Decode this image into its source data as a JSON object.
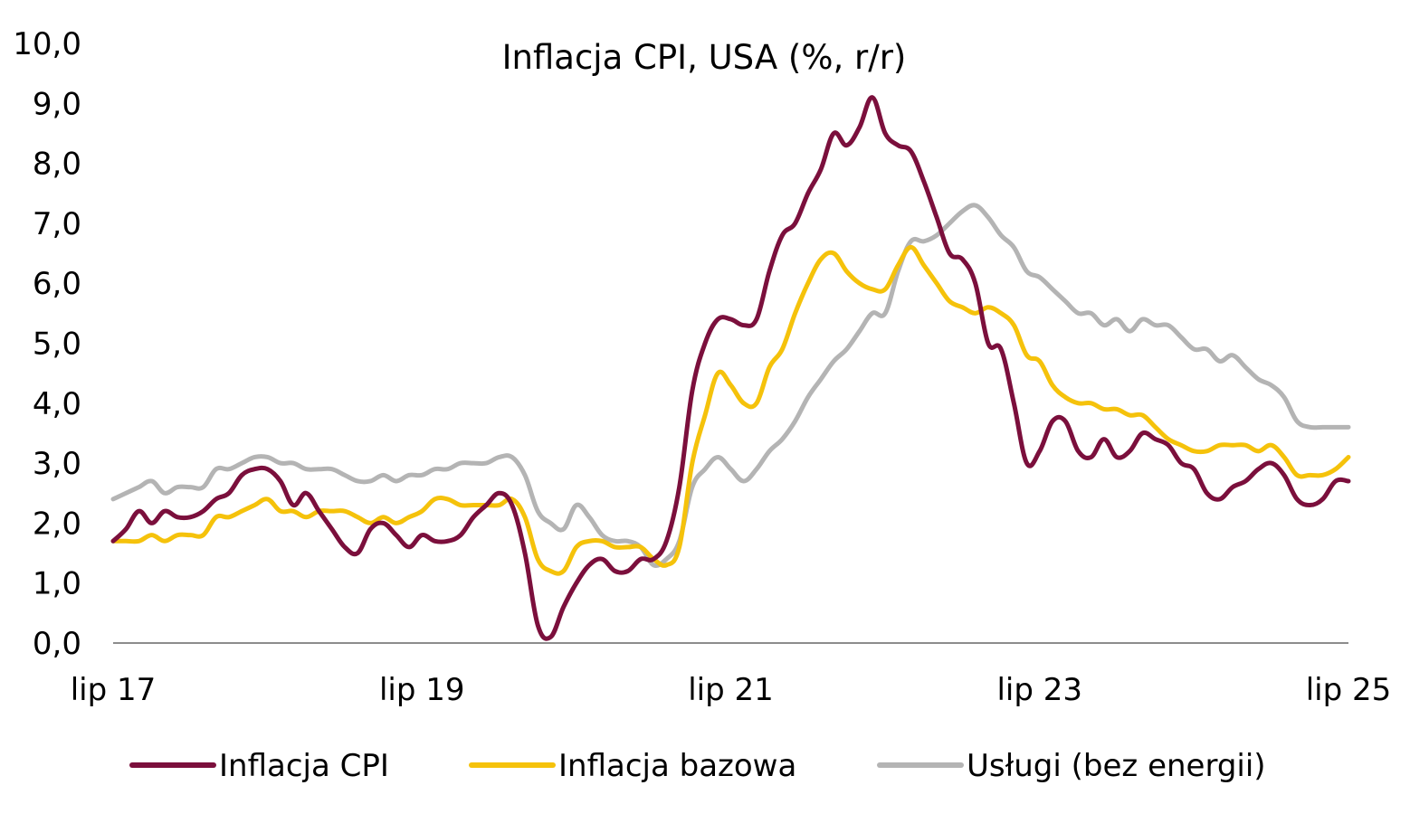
{
  "chart_data": {
    "type": "line",
    "title": "Inflacja CPI, USA (%, r/r)",
    "xlabel": "",
    "ylabel": "",
    "ylim": [
      0,
      10
    ],
    "y_ticks": [
      "0,0",
      "1,0",
      "2,0",
      "3,0",
      "4,0",
      "5,0",
      "6,0",
      "7,0",
      "8,0",
      "9,0",
      "10,0"
    ],
    "x_ticks": [
      "lip 17",
      "lip 19",
      "lip 21",
      "lip 23",
      "lip 25"
    ],
    "x_start": "2017-07",
    "x_end": "2025-07",
    "grid": false,
    "legend_position": "bottom",
    "series": [
      {
        "name": "Inflacja CPI",
        "color": "#7b0f3c",
        "values": [
          1.7,
          1.9,
          2.2,
          2.0,
          2.2,
          2.1,
          2.1,
          2.2,
          2.4,
          2.5,
          2.8,
          2.9,
          2.9,
          2.7,
          2.3,
          2.5,
          2.2,
          1.9,
          1.6,
          1.5,
          1.9,
          2.0,
          1.8,
          1.6,
          1.8,
          1.7,
          1.7,
          1.8,
          2.1,
          2.3,
          2.5,
          2.3,
          1.5,
          0.3,
          0.1,
          0.6,
          1.0,
          1.3,
          1.4,
          1.2,
          1.2,
          1.4,
          1.4,
          1.7,
          2.6,
          4.2,
          5.0,
          5.4,
          5.4,
          5.3,
          5.4,
          6.2,
          6.8,
          7.0,
          7.5,
          7.9,
          8.5,
          8.3,
          8.6,
          9.1,
          8.5,
          8.3,
          8.2,
          7.7,
          7.1,
          6.5,
          6.4,
          6.0,
          5.0,
          4.9,
          4.0,
          3.0,
          3.2,
          3.7,
          3.7,
          3.2,
          3.1,
          3.4,
          3.1,
          3.2,
          3.5,
          3.4,
          3.3,
          3.0,
          2.9,
          2.5,
          2.4,
          2.6,
          2.7,
          2.9,
          3.0,
          2.8,
          2.4,
          2.3,
          2.4,
          2.7,
          2.7
        ]
      },
      {
        "name": "Inflacja bazowa",
        "color": "#f5c20b",
        "values": [
          1.7,
          1.7,
          1.7,
          1.8,
          1.7,
          1.8,
          1.8,
          1.8,
          2.1,
          2.1,
          2.2,
          2.3,
          2.4,
          2.2,
          2.2,
          2.1,
          2.2,
          2.2,
          2.2,
          2.1,
          2.0,
          2.1,
          2.0,
          2.1,
          2.2,
          2.4,
          2.4,
          2.3,
          2.3,
          2.3,
          2.3,
          2.4,
          2.1,
          1.4,
          1.2,
          1.2,
          1.6,
          1.7,
          1.7,
          1.6,
          1.6,
          1.6,
          1.4,
          1.3,
          1.6,
          3.0,
          3.8,
          4.5,
          4.3,
          4.0,
          4.0,
          4.6,
          4.9,
          5.5,
          6.0,
          6.4,
          6.5,
          6.2,
          6.0,
          5.9,
          5.9,
          6.3,
          6.6,
          6.3,
          6.0,
          5.7,
          5.6,
          5.5,
          5.6,
          5.5,
          5.3,
          4.8,
          4.7,
          4.3,
          4.1,
          4.0,
          4.0,
          3.9,
          3.9,
          3.8,
          3.8,
          3.6,
          3.4,
          3.3,
          3.2,
          3.2,
          3.3,
          3.3,
          3.3,
          3.2,
          3.3,
          3.1,
          2.8,
          2.8,
          2.8,
          2.9,
          3.1
        ]
      },
      {
        "name": "Usługi (bez energii)",
        "color": "#b4b4b4",
        "values": [
          2.4,
          2.5,
          2.6,
          2.7,
          2.5,
          2.6,
          2.6,
          2.6,
          2.9,
          2.9,
          3.0,
          3.1,
          3.1,
          3.0,
          3.0,
          2.9,
          2.9,
          2.9,
          2.8,
          2.7,
          2.7,
          2.8,
          2.7,
          2.8,
          2.8,
          2.9,
          2.9,
          3.0,
          3.0,
          3.0,
          3.1,
          3.1,
          2.8,
          2.2,
          2.0,
          1.9,
          2.3,
          2.1,
          1.8,
          1.7,
          1.7,
          1.6,
          1.3,
          1.4,
          1.7,
          2.6,
          2.9,
          3.1,
          2.9,
          2.7,
          2.9,
          3.2,
          3.4,
          3.7,
          4.1,
          4.4,
          4.7,
          4.9,
          5.2,
          5.5,
          5.5,
          6.2,
          6.7,
          6.7,
          6.8,
          7.0,
          7.2,
          7.3,
          7.1,
          6.8,
          6.6,
          6.2,
          6.1,
          5.9,
          5.7,
          5.5,
          5.5,
          5.3,
          5.4,
          5.2,
          5.4,
          5.3,
          5.3,
          5.1,
          4.9,
          4.9,
          4.7,
          4.8,
          4.6,
          4.4,
          4.3,
          4.1,
          3.7,
          3.6,
          3.6,
          3.6,
          3.6
        ]
      }
    ]
  }
}
